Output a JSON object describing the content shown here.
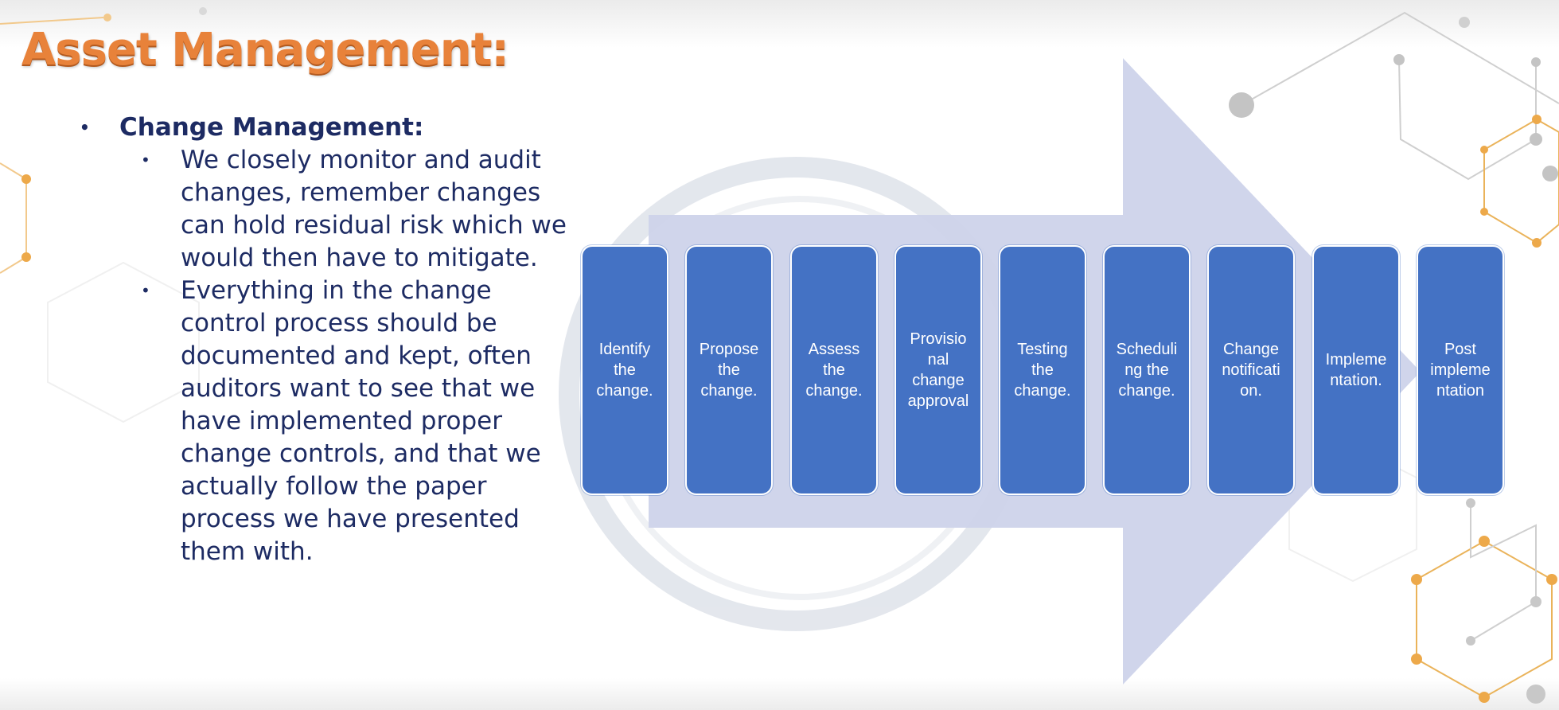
{
  "slide": {
    "title": "Asset Management:",
    "section_heading": "Change Management:",
    "points": [
      "We closely monitor and audit changes, remember changes can hold residual risk which we would then have to mitigate.",
      "Everything in the change control process should be documented and kept, often auditors want to see that we have implemented proper change controls, and that we actually follow the paper process we have presented them with."
    ],
    "bullet_char": "•",
    "colors": {
      "title": "#e8823a",
      "text": "#1d2b63",
      "step": "#4472c4",
      "arrow": "#cdd3ea"
    }
  },
  "diagram": {
    "steps": [
      "Identify\nthe\nchange.",
      "Propose\nthe\nchange.",
      "Assess\nthe\nchange.",
      "Provisio\nnal\nchange\napproval",
      "Testing\nthe\nchange.",
      "Scheduli\nng the\nchange.",
      "Change\nnotificati\non.",
      "Impleme\nntation.",
      "Post\nimpleme\nntation"
    ]
  }
}
